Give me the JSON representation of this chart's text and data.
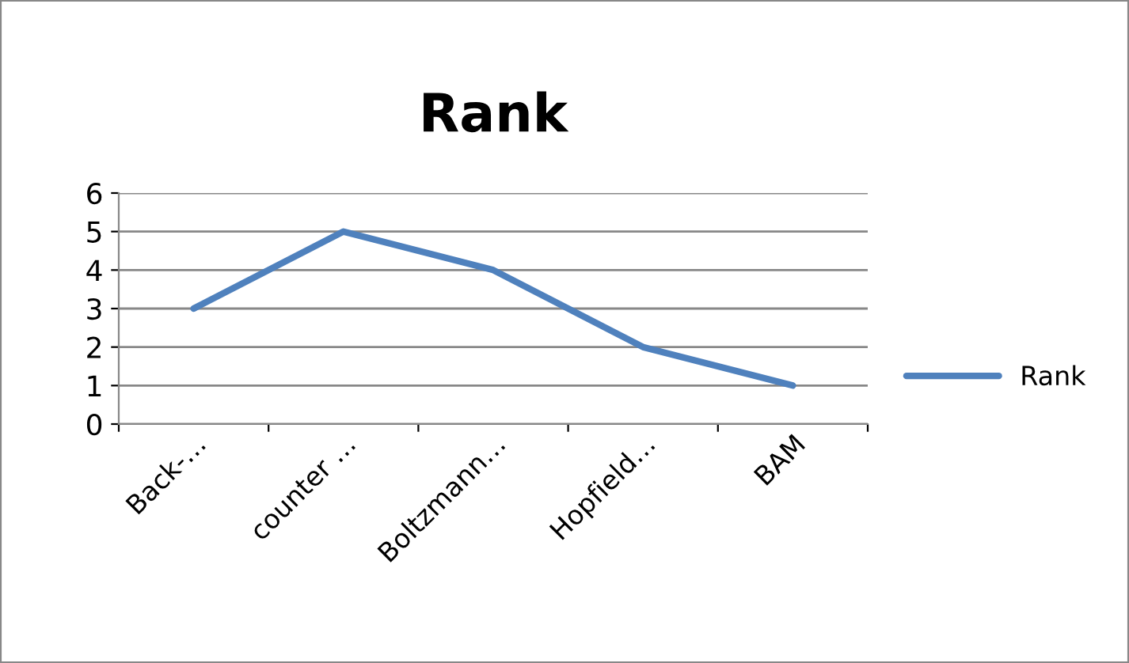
{
  "chart_data": {
    "type": "line",
    "title": "Rank",
    "categories": [
      "Back-…",
      "counter …",
      "Boltzmann…",
      "Hopfield…",
      "BAM"
    ],
    "series": [
      {
        "name": "Rank",
        "color": "#4f81bd",
        "values": [
          3,
          5,
          4,
          2,
          1
        ]
      }
    ],
    "ylim": [
      0,
      6
    ],
    "yticks": [
      0,
      1,
      2,
      3,
      4,
      5,
      6
    ],
    "grid": "y",
    "legend": "right",
    "marker": "none",
    "line_style": "solid"
  }
}
